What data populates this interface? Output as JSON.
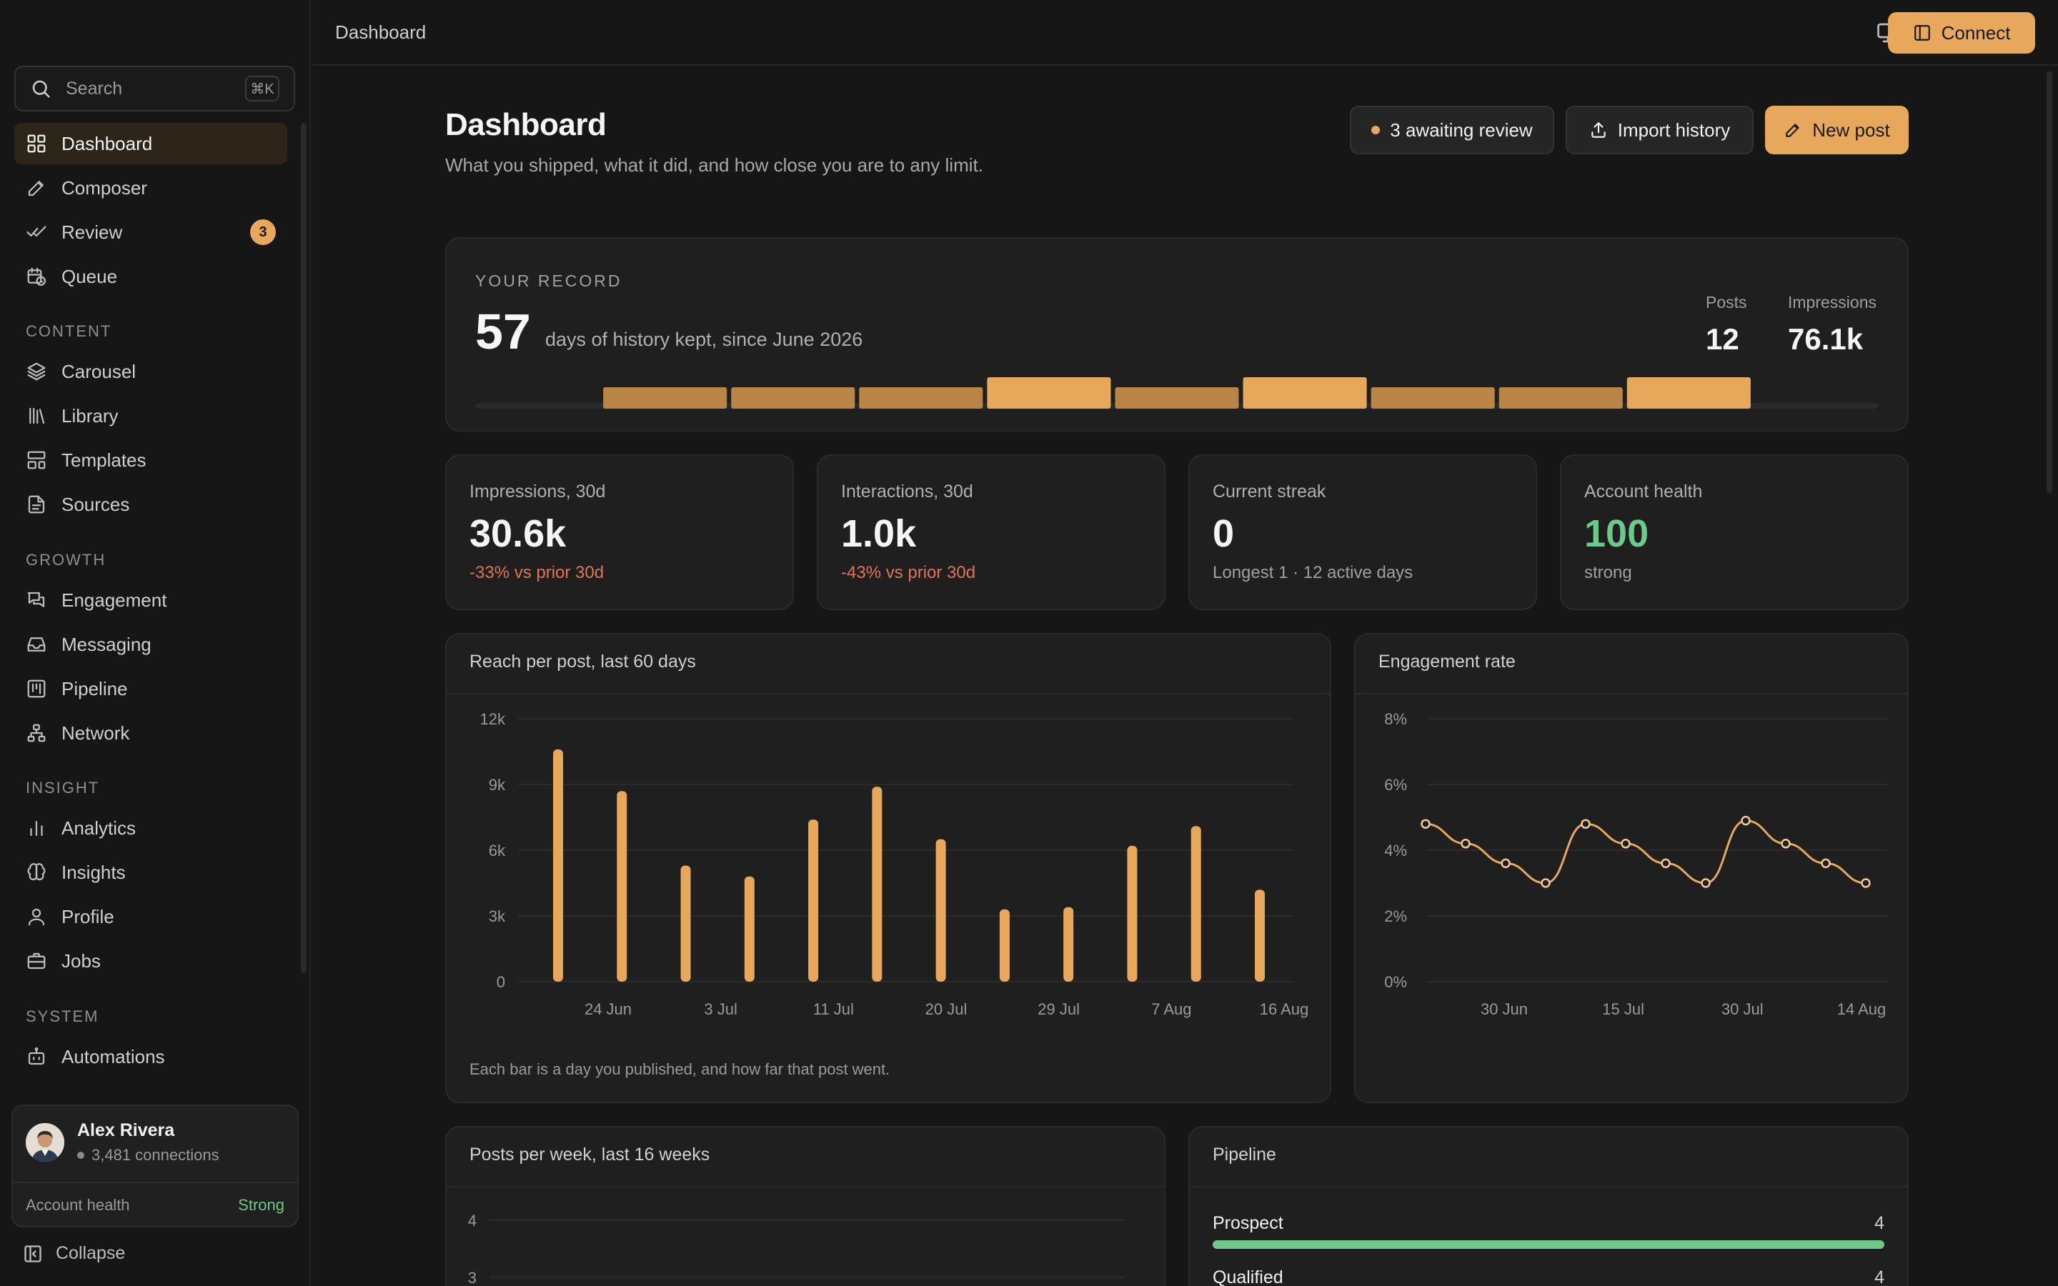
{
  "topbar": {
    "title": "Dashboard",
    "connect_label": "Connect"
  },
  "sidebar": {
    "search_placeholder": "Search",
    "search_shortcut": "⌘K",
    "main_items": [
      {
        "label": "Dashboard",
        "icon": "grid-icon",
        "active": true
      },
      {
        "label": "Composer",
        "icon": "pen-icon"
      },
      {
        "label": "Review",
        "icon": "check-check-icon",
        "badge": "3"
      },
      {
        "label": "Queue",
        "icon": "calendar-clock-icon"
      }
    ],
    "sections": [
      {
        "title": "CONTENT",
        "items": [
          {
            "label": "Carousel",
            "icon": "layers-icon"
          },
          {
            "label": "Library",
            "icon": "library-icon"
          },
          {
            "label": "Templates",
            "icon": "layout-icon"
          },
          {
            "label": "Sources",
            "icon": "file-text-icon"
          }
        ]
      },
      {
        "title": "GROWTH",
        "items": [
          {
            "label": "Engagement",
            "icon": "messages-icon"
          },
          {
            "label": "Messaging",
            "icon": "inbox-icon"
          },
          {
            "label": "Pipeline",
            "icon": "kanban-icon"
          },
          {
            "label": "Network",
            "icon": "network-icon"
          }
        ]
      },
      {
        "title": "INSIGHT",
        "items": [
          {
            "label": "Analytics",
            "icon": "bar-chart-icon"
          },
          {
            "label": "Insights",
            "icon": "brain-icon"
          },
          {
            "label": "Profile",
            "icon": "user-icon"
          },
          {
            "label": "Jobs",
            "icon": "briefcase-icon"
          }
        ]
      },
      {
        "title": "SYSTEM",
        "items": [
          {
            "label": "Automations",
            "icon": "bot-icon"
          }
        ]
      }
    ],
    "user": {
      "name": "Alex Rivera",
      "connections": "3,481 connections",
      "health_label": "Account health",
      "health_value": "Strong"
    },
    "collapse_label": "Collapse"
  },
  "header": {
    "title": "Dashboard",
    "subtitle": "What you shipped, what it did, and how close you are to any limit.",
    "review_btn": "3 awaiting review",
    "import_btn": "Import history",
    "new_post_btn": "New post"
  },
  "record": {
    "label": "YOUR RECORD",
    "days": "57",
    "text": "days of history kept, since June 2026",
    "posts_label": "Posts",
    "posts_value": "12",
    "impressions_label": "Impressions",
    "impressions_value": "76.1k",
    "strip": [
      0,
      1,
      1,
      1,
      2,
      1,
      2,
      1,
      1,
      2,
      0
    ]
  },
  "kpis": [
    {
      "label": "Impressions, 30d",
      "value": "30.6k",
      "sub": "-33% vs prior 30d",
      "tone": "neg"
    },
    {
      "label": "Interactions, 30d",
      "value": "1.0k",
      "sub": "-43% vs prior 30d",
      "tone": "neg"
    },
    {
      "label": "Current streak",
      "value": "0",
      "sub": "Longest 1 · 12 active days",
      "tone": "muted"
    },
    {
      "label": "Account health",
      "value": "100",
      "sub": "strong",
      "tone": "good"
    }
  ],
  "colors": {
    "accent": "#e8a85c",
    "positive": "#6cc98a",
    "negative": "#e0735a"
  },
  "reach": {
    "title": "Reach per post, last 60 days",
    "footnote": "Each bar is a day you published, and how far that post went.",
    "chart_data": {
      "type": "bar",
      "ylim": [
        0,
        12000
      ],
      "yticks": [
        0,
        3000,
        6000,
        9000,
        12000
      ],
      "ytick_labels": [
        "0",
        "3k",
        "6k",
        "9k",
        "12k"
      ],
      "xtick_labels": [
        "24 Jun",
        "3 Jul",
        "11 Jul",
        "20 Jul",
        "29 Jul",
        "7 Aug",
        "16 Aug"
      ],
      "values": [
        10600,
        8700,
        5300,
        4800,
        7400,
        8900,
        6500,
        3300,
        3400,
        6200,
        7100,
        4200
      ]
    }
  },
  "engagement": {
    "title": "Engagement rate",
    "chart_data": {
      "type": "line",
      "ylim": [
        0,
        8
      ],
      "yticks": [
        0,
        2,
        4,
        6,
        8
      ],
      "ytick_labels": [
        "0%",
        "2%",
        "4%",
        "6%",
        "8%"
      ],
      "xtick_labels": [
        "30 Jun",
        "15 Jul",
        "30 Jul",
        "14 Aug"
      ],
      "values": [
        4.8,
        4.2,
        3.6,
        3.0,
        4.8,
        4.2,
        3.6,
        3.0,
        4.9,
        4.2,
        3.6,
        3.0
      ]
    }
  },
  "posts_week": {
    "title": "Posts per week, last 16 weeks",
    "chart_data": {
      "type": "bar",
      "ytick_labels": [
        "4",
        "3"
      ]
    }
  },
  "pipeline": {
    "title": "Pipeline",
    "rows": [
      {
        "name": "Prospect",
        "count": "4",
        "fill": 1.0
      },
      {
        "name": "Qualified",
        "count": "4",
        "fill": 1.0
      }
    ]
  }
}
